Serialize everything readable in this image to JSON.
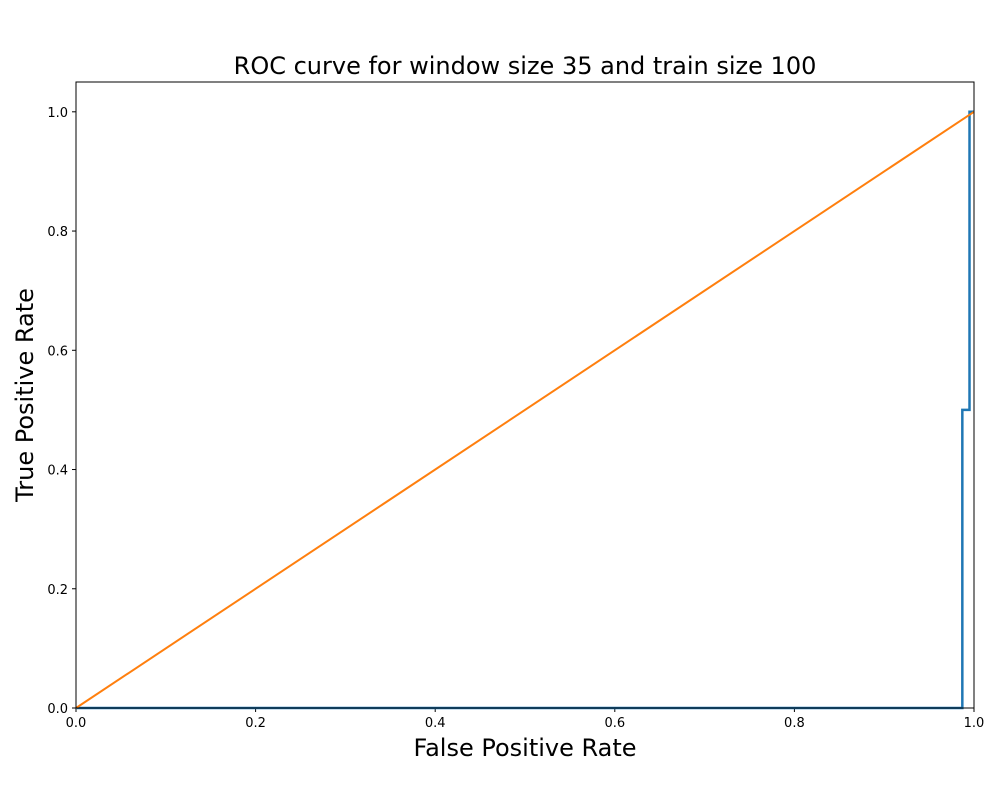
{
  "chart_data": {
    "type": "line",
    "title": "ROC curve  for window size 35 and train size 100",
    "xlabel": "False Positive Rate",
    "ylabel": "True Positive Rate",
    "xlim": [
      0.0,
      1.0
    ],
    "ylim": [
      0.0,
      1.05
    ],
    "x_ticks": [
      0.0,
      0.2,
      0.4,
      0.6,
      0.8,
      1.0
    ],
    "x_tick_labels": [
      "0.0",
      "0.2",
      "0.4",
      "0.6",
      "0.8",
      "1.0"
    ],
    "y_ticks": [
      0.0,
      0.2,
      0.4,
      0.6,
      0.8,
      1.0
    ],
    "y_tick_labels": [
      "0.0",
      "0.2",
      "0.4",
      "0.6",
      "0.8",
      "1.0"
    ],
    "grid": false,
    "legend": "none",
    "series": [
      {
        "color": "#1f77b4",
        "points": [
          [
            0.0,
            0.0
          ],
          [
            0.987,
            0.0
          ],
          [
            0.987,
            0.5
          ],
          [
            0.995,
            0.5
          ],
          [
            0.995,
            1.0
          ],
          [
            1.0,
            1.0
          ]
        ]
      },
      {
        "color": "#ff7f0e",
        "points": [
          [
            0.0,
            0.0
          ],
          [
            1.0,
            1.0
          ]
        ]
      }
    ]
  }
}
